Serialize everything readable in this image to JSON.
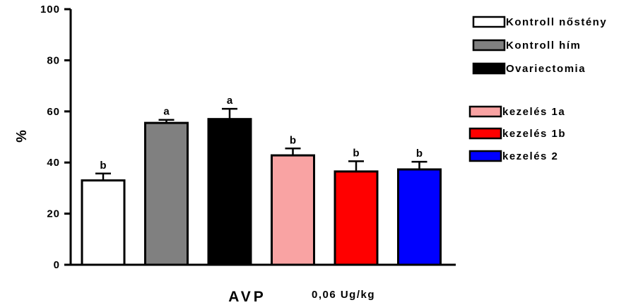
{
  "chart_data": {
    "type": "bar",
    "ylabel": "%",
    "xlabel": "AVP",
    "xlabel_note": "0,06 Ug/kg",
    "ylim": [
      0,
      100
    ],
    "yticks": [
      0,
      20,
      40,
      60,
      80,
      100
    ],
    "categories": [
      "Kontroll nőstény",
      "Kontroll hím",
      "Ovariectomia",
      "kezelés 1a",
      "kezelés 1b",
      "kezelés 2"
    ],
    "values": [
      33,
      55.5,
      57,
      42.8,
      36.5,
      37.3
    ],
    "errors": [
      2.7,
      1.2,
      4,
      2.7,
      4,
      3
    ],
    "significance": [
      "b",
      "a",
      "a",
      "b",
      "b",
      "b"
    ],
    "colors": [
      "#ffffff",
      "#808080",
      "#000000",
      "#f9a3a3",
      "#ff0000",
      "#0000ff"
    ],
    "legend": [
      {
        "label": "Kontroll nőstény",
        "color": "#ffffff"
      },
      {
        "label": "Kontroll hím",
        "color": "#808080"
      },
      {
        "label": "Ovariectomia",
        "color": "#000000"
      },
      {
        "label": "kezelés 1a",
        "color": "#f9a3a3"
      },
      {
        "label": "kezelés 1b",
        "color": "#ff0000"
      },
      {
        "label": "kezelés 2",
        "color": "#0000ff"
      }
    ],
    "grid": false,
    "legend_position": "right"
  }
}
